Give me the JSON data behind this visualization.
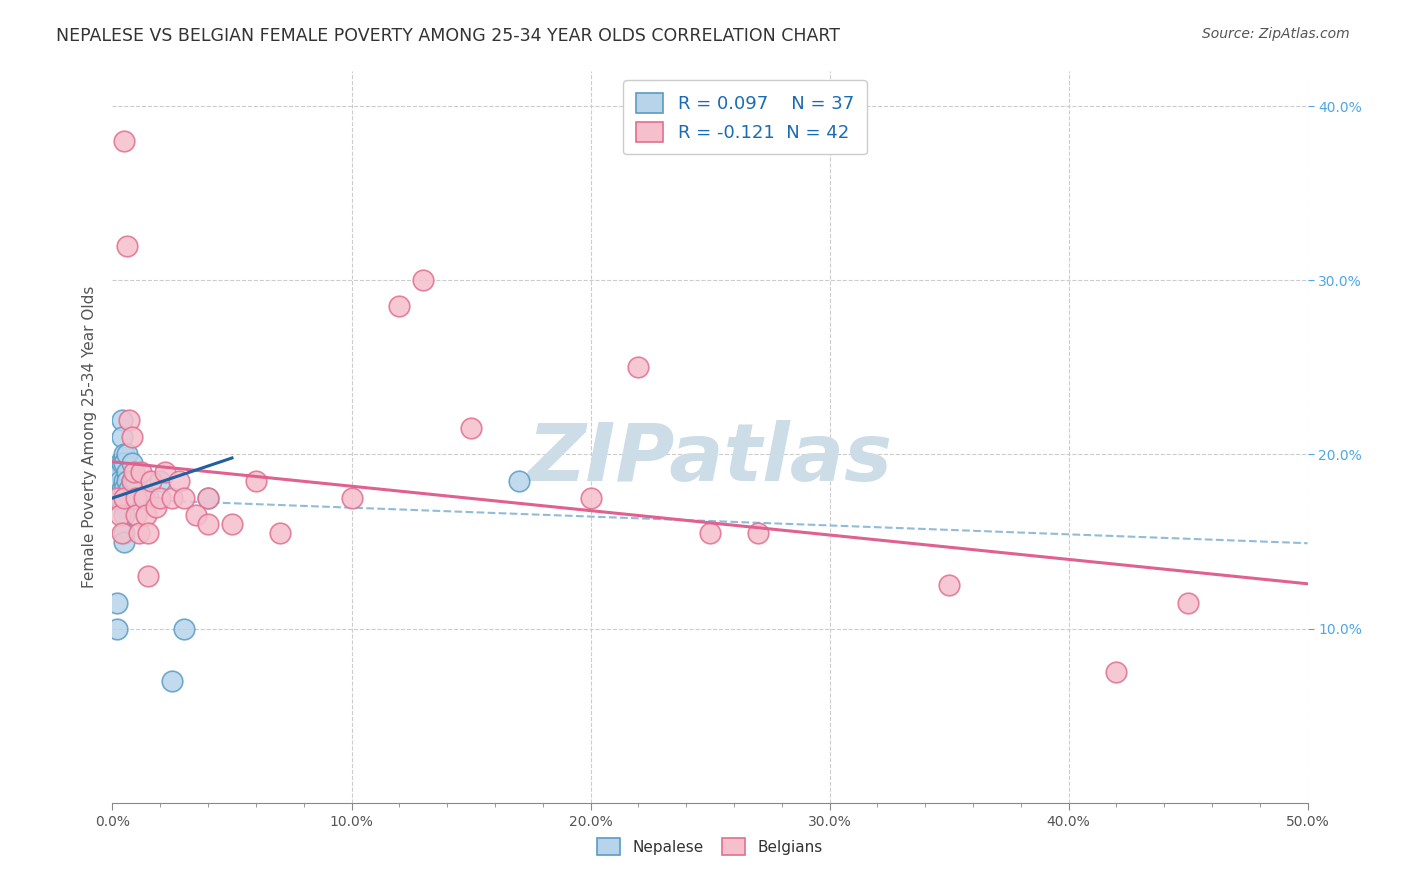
{
  "title": "NEPALESE VS BELGIAN FEMALE POVERTY AMONG 25-34 YEAR OLDS CORRELATION CHART",
  "source": "Source: ZipAtlas.com",
  "ylabel": "Female Poverty Among 25-34 Year Olds",
  "xlim": [
    0.0,
    0.5
  ],
  "ylim": [
    0.0,
    0.42
  ],
  "xtick_vals": [
    0.0,
    0.1,
    0.2,
    0.3,
    0.4,
    0.5
  ],
  "xtick_labels": [
    "0.0%",
    "10.0%",
    "20.0%",
    "30.0%",
    "40.0%",
    "50.0%"
  ],
  "ytick_right_vals": [
    0.1,
    0.2,
    0.3,
    0.4
  ],
  "ytick_right_labels": [
    "10.0%",
    "20.0%",
    "30.0%",
    "40.0%"
  ],
  "nepalese_face": "#b8d4eb",
  "nepalese_edge": "#5a9cc5",
  "belgian_face": "#f5bfcc",
  "belgian_edge": "#e07090",
  "line_nepalese_color": "#2060a0",
  "line_nepalese_dash_color": "#90bcd8",
  "line_belgian_color": "#e06090",
  "R_nepalese": 0.097,
  "N_nepalese": 37,
  "R_belgian": -0.121,
  "N_belgian": 42,
  "watermark": "ZIPatlas",
  "watermark_color": "#ccdde8",
  "background_color": "#ffffff",
  "grid_color": "#cccccc",
  "nepalese_x": [
    0.002,
    0.002,
    0.003,
    0.003,
    0.003,
    0.003,
    0.004,
    0.004,
    0.004,
    0.004,
    0.005,
    0.005,
    0.005,
    0.005,
    0.005,
    0.005,
    0.005,
    0.005,
    0.005,
    0.006,
    0.006,
    0.006,
    0.007,
    0.007,
    0.008,
    0.008,
    0.008,
    0.009,
    0.009,
    0.01,
    0.01,
    0.015,
    0.02,
    0.025,
    0.03,
    0.17,
    0.04
  ],
  "nepalese_y": [
    0.115,
    0.1,
    0.195,
    0.19,
    0.185,
    0.175,
    0.22,
    0.21,
    0.195,
    0.18,
    0.2,
    0.195,
    0.185,
    0.18,
    0.175,
    0.17,
    0.165,
    0.155,
    0.15,
    0.2,
    0.19,
    0.185,
    0.18,
    0.175,
    0.195,
    0.185,
    0.175,
    0.185,
    0.175,
    0.185,
    0.175,
    0.175,
    0.185,
    0.07,
    0.1,
    0.185,
    0.175
  ],
  "belgian_x": [
    0.002,
    0.003,
    0.004,
    0.005,
    0.005,
    0.006,
    0.007,
    0.008,
    0.008,
    0.009,
    0.01,
    0.01,
    0.011,
    0.012,
    0.013,
    0.014,
    0.015,
    0.015,
    0.016,
    0.018,
    0.02,
    0.022,
    0.025,
    0.028,
    0.03,
    0.035,
    0.04,
    0.04,
    0.05,
    0.06,
    0.07,
    0.1,
    0.12,
    0.13,
    0.15,
    0.2,
    0.22,
    0.25,
    0.27,
    0.35,
    0.42,
    0.45
  ],
  "belgian_y": [
    0.175,
    0.165,
    0.155,
    0.38,
    0.175,
    0.32,
    0.22,
    0.21,
    0.185,
    0.19,
    0.175,
    0.165,
    0.155,
    0.19,
    0.175,
    0.165,
    0.155,
    0.13,
    0.185,
    0.17,
    0.175,
    0.19,
    0.175,
    0.185,
    0.175,
    0.165,
    0.175,
    0.16,
    0.16,
    0.185,
    0.155,
    0.175,
    0.285,
    0.3,
    0.215,
    0.175,
    0.25,
    0.155,
    0.155,
    0.125,
    0.075,
    0.115
  ]
}
